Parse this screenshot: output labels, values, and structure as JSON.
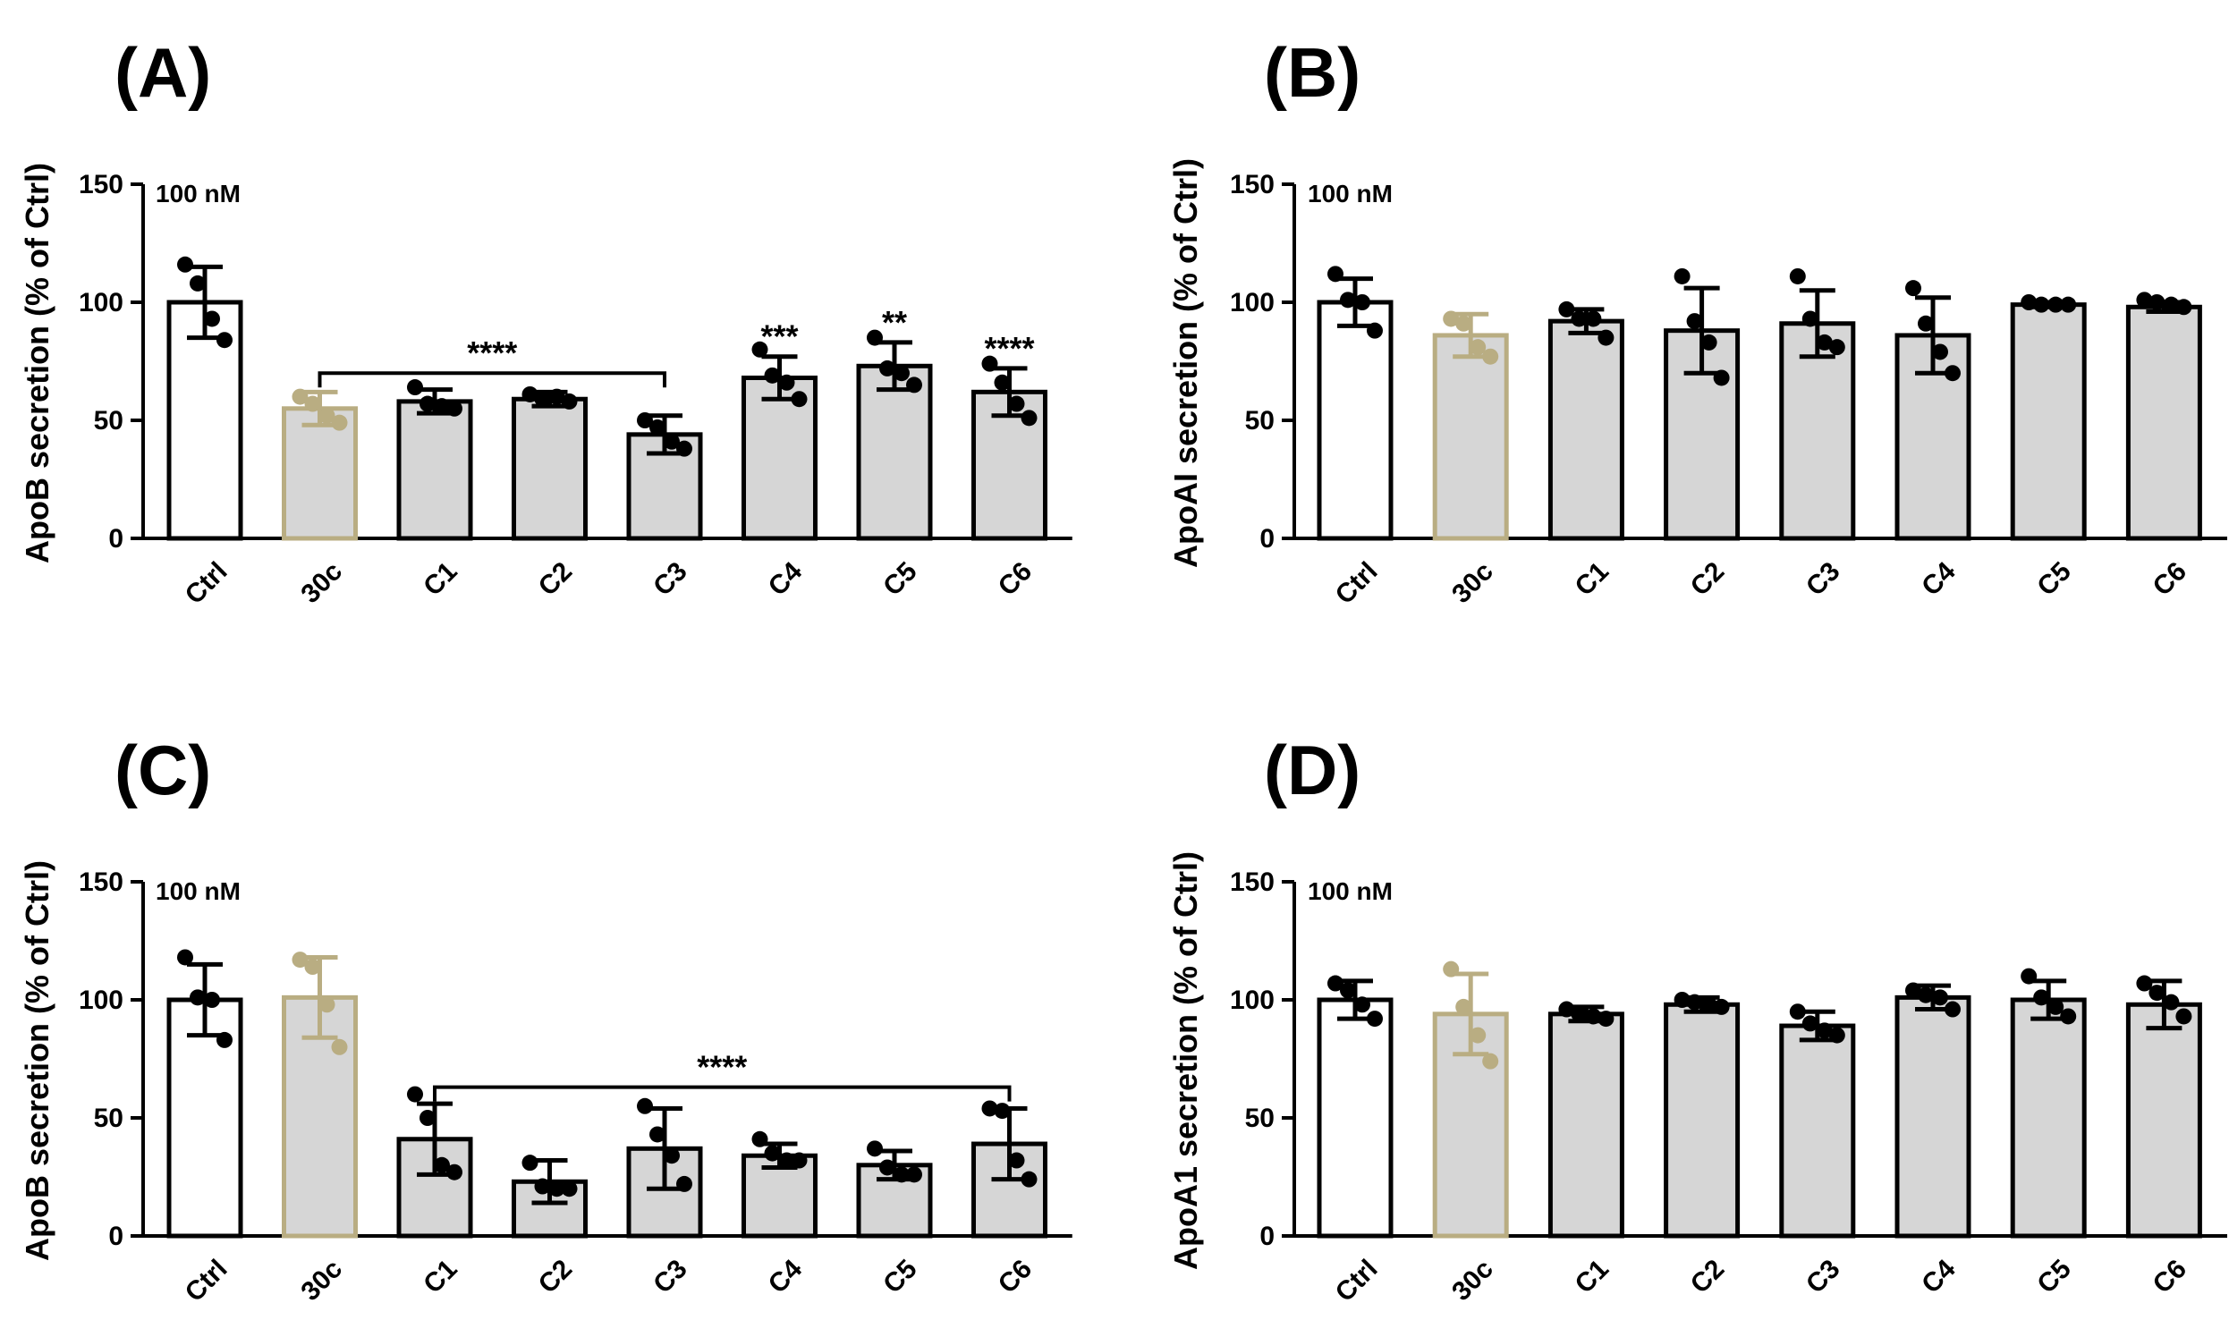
{
  "chart_data": [
    {
      "panel": "(A)",
      "type": "bar",
      "ylabel": "ApoB secretion (% of Ctrl)",
      "annotation": "100 nM",
      "ylim": [
        0,
        150
      ],
      "yticks": [
        "0",
        "50",
        "100",
        "150"
      ],
      "categories": [
        "Ctrl",
        "30c",
        "C1",
        "C2",
        "C3",
        "C4",
        "C5",
        "C6"
      ],
      "values": [
        100,
        55,
        58,
        59,
        44,
        68,
        73,
        62
      ],
      "sd": [
        15,
        7,
        5,
        3,
        8,
        9,
        10,
        10
      ],
      "points": [
        [
          116,
          108,
          93,
          84
        ],
        [
          60,
          57,
          52,
          49
        ],
        [
          64,
          57,
          56,
          55
        ],
        [
          61,
          59,
          60,
          58
        ],
        [
          50,
          47,
          41,
          38
        ],
        [
          80,
          69,
          66,
          59
        ],
        [
          85,
          72,
          70,
          65
        ],
        [
          74,
          66,
          57,
          51
        ]
      ],
      "bar_colors": [
        "#ffffff",
        "#d6d6d6",
        "#d6d6d6",
        "#d6d6d6",
        "#d6d6d6",
        "#d6d6d6",
        "#d6d6d6",
        "#d6d6d6"
      ],
      "edge_colors": [
        "#000000",
        "#b9ad82",
        "#000000",
        "#000000",
        "#000000",
        "#000000",
        "#000000",
        "#000000"
      ],
      "significance": [
        {
          "type": "bracket",
          "from": 1,
          "to": 4,
          "label": "****"
        },
        {
          "type": "above",
          "index": 5,
          "label": "***"
        },
        {
          "type": "above",
          "index": 6,
          "label": "**"
        },
        {
          "type": "above",
          "index": 7,
          "label": "****"
        }
      ]
    },
    {
      "panel": "(B)",
      "type": "bar",
      "ylabel": "ApoAI secretion (% of Ctrl)",
      "annotation": "100 nM",
      "ylim": [
        0,
        150
      ],
      "yticks": [
        "0",
        "50",
        "100",
        "150"
      ],
      "categories": [
        "Ctrl",
        "30c",
        "C1",
        "C2",
        "C3",
        "C4",
        "C5",
        "C6"
      ],
      "values": [
        100,
        86,
        92,
        88,
        91,
        86,
        99,
        98
      ],
      "sd": [
        10,
        9,
        5,
        18,
        14,
        16,
        1,
        2
      ],
      "points": [
        [
          112,
          101,
          100,
          88
        ],
        [
          93,
          91,
          81,
          77
        ],
        [
          97,
          93,
          93,
          85
        ],
        [
          111,
          92,
          83,
          68
        ],
        [
          111,
          93,
          83,
          81
        ],
        [
          106,
          91,
          79,
          70
        ],
        [
          100,
          99,
          99,
          99
        ],
        [
          101,
          100,
          99,
          98
        ]
      ],
      "bar_colors": [
        "#ffffff",
        "#d6d6d6",
        "#d6d6d6",
        "#d6d6d6",
        "#d6d6d6",
        "#d6d6d6",
        "#d6d6d6",
        "#d6d6d6"
      ],
      "edge_colors": [
        "#000000",
        "#b9ad82",
        "#000000",
        "#000000",
        "#000000",
        "#000000",
        "#000000",
        "#000000"
      ],
      "significance": []
    },
    {
      "panel": "(C)",
      "type": "bar",
      "ylabel": "ApoB secretion (% of Ctrl)",
      "annotation": "100 nM",
      "ylim": [
        0,
        150
      ],
      "yticks": [
        "0",
        "50",
        "100",
        "150"
      ],
      "categories": [
        "Ctrl",
        "30c",
        "C1",
        "C2",
        "C3",
        "C4",
        "C5",
        "C6"
      ],
      "values": [
        100,
        101,
        41,
        23,
        37,
        34,
        30,
        39
      ],
      "sd": [
        15,
        17,
        15,
        9,
        17,
        5,
        6,
        15
      ],
      "points": [
        [
          118,
          101,
          100,
          83
        ],
        [
          117,
          114,
          98,
          80
        ],
        [
          60,
          50,
          30,
          27
        ],
        [
          31,
          21,
          20,
          20
        ],
        [
          55,
          43,
          34,
          22
        ],
        [
          41,
          35,
          32,
          32
        ],
        [
          37,
          29,
          26,
          26
        ],
        [
          54,
          53,
          32,
          24
        ]
      ],
      "bar_colors": [
        "#ffffff",
        "#d6d6d6",
        "#d6d6d6",
        "#d6d6d6",
        "#d6d6d6",
        "#d6d6d6",
        "#d6d6d6",
        "#d6d6d6"
      ],
      "edge_colors": [
        "#000000",
        "#b9ad82",
        "#000000",
        "#000000",
        "#000000",
        "#000000",
        "#000000",
        "#000000"
      ],
      "significance": [
        {
          "type": "bracket",
          "from": 2,
          "to": 7,
          "label": "****"
        }
      ]
    },
    {
      "panel": "(D)",
      "type": "bar",
      "ylabel": "ApoA1 secretion (% of Ctrl)",
      "annotation": "100 nM",
      "ylim": [
        0,
        150
      ],
      "yticks": [
        "0",
        "50",
        "100",
        "150"
      ],
      "categories": [
        "Ctrl",
        "30c",
        "C1",
        "C2",
        "C3",
        "C4",
        "C5",
        "C6"
      ],
      "values": [
        100,
        94,
        94,
        98,
        89,
        101,
        100,
        98
      ],
      "sd": [
        8,
        17,
        3,
        3,
        6,
        5,
        8,
        10
      ],
      "points": [
        [
          107,
          104,
          98,
          92
        ],
        [
          113,
          97,
          85,
          74
        ],
        [
          96,
          94,
          93,
          92
        ],
        [
          100,
          99,
          98,
          97
        ],
        [
          95,
          90,
          87,
          85
        ],
        [
          104,
          102,
          101,
          96
        ],
        [
          110,
          101,
          97,
          93
        ],
        [
          107,
          103,
          99,
          93
        ]
      ],
      "bar_colors": [
        "#ffffff",
        "#d6d6d6",
        "#d6d6d6",
        "#d6d6d6",
        "#d6d6d6",
        "#d6d6d6",
        "#d6d6d6",
        "#d6d6d6"
      ],
      "edge_colors": [
        "#000000",
        "#b9ad82",
        "#000000",
        "#000000",
        "#000000",
        "#000000",
        "#000000",
        "#000000"
      ],
      "significance": []
    }
  ]
}
